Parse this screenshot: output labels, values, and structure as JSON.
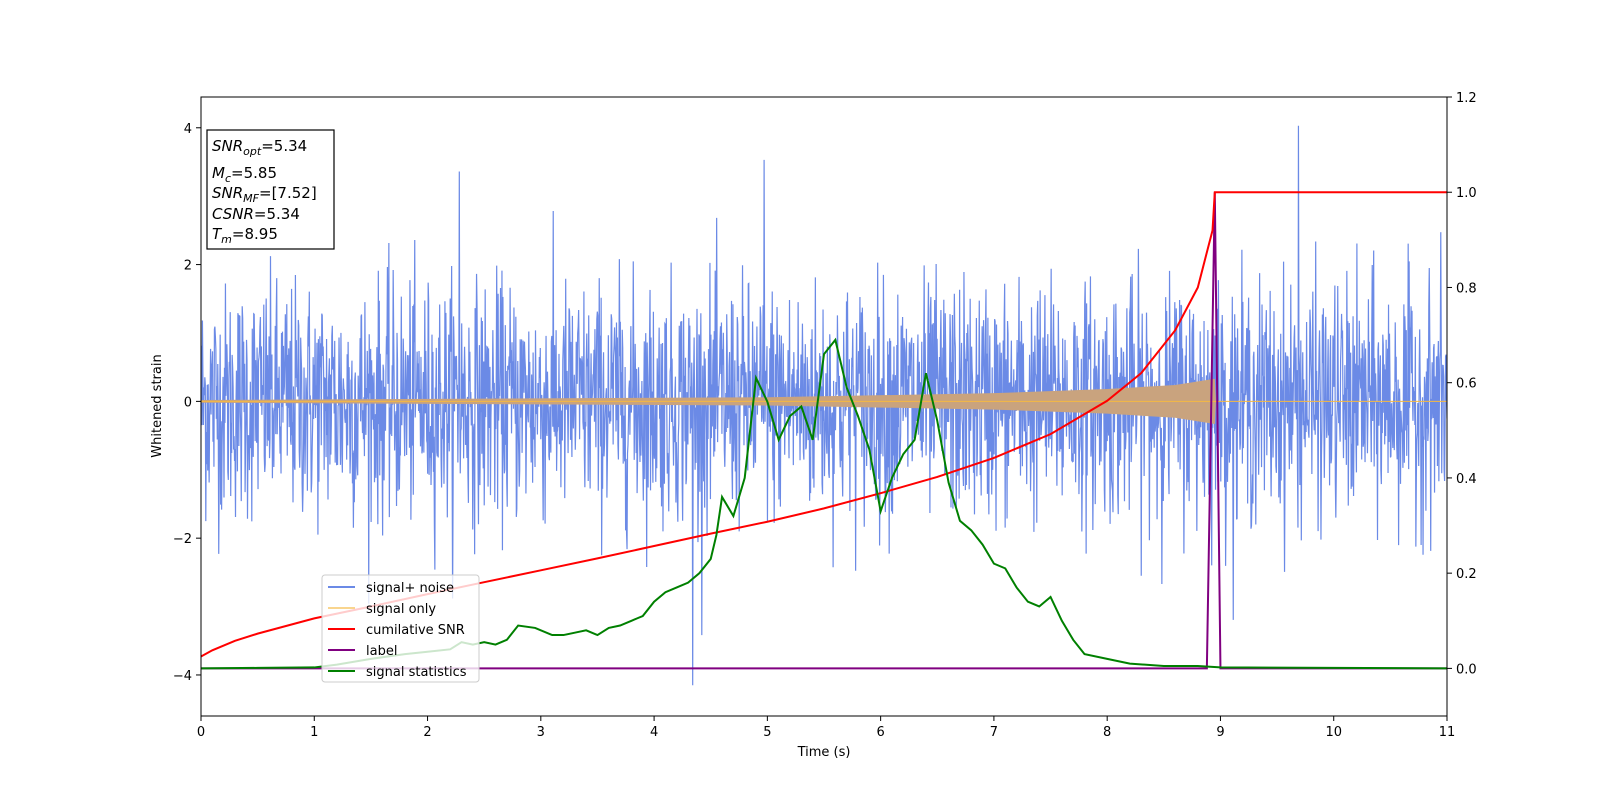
{
  "chart_data": {
    "type": "line",
    "xlabel": "Time (s)",
    "ylabel": "Whitened strain",
    "xlim": [
      0,
      11
    ],
    "ylim": [
      -4.6,
      4.45
    ],
    "ylim_right": [
      -0.1,
      1.2
    ],
    "xticks": [
      "0",
      "1",
      "2",
      "3",
      "4",
      "5",
      "6",
      "7",
      "8",
      "9",
      "10",
      "11"
    ],
    "yticks_left": [
      "−4",
      "−2",
      "0",
      "2",
      "4"
    ],
    "yticks_right": [
      "0.0",
      "0.2",
      "0.4",
      "0.6",
      "0.8",
      "1.0",
      "1.2"
    ],
    "grid": false,
    "legend_position": "lower-left",
    "colors": {
      "noise": "#6b8ae6",
      "signal": "#f5b942",
      "overlap": "#c9a37e",
      "csnr": "#ff0000",
      "label": "#800080",
      "stats": "#008000"
    },
    "annotation": {
      "snr_opt": {
        "base": "SNR",
        "sub": "opt",
        "value": "=5.34"
      },
      "mc": {
        "base": "M",
        "sub": "c",
        "value": "=5.85"
      },
      "snr_mf": {
        "base": "SNR",
        "sub": "MF",
        "value": "=[7.52]"
      },
      "csnr": {
        "base": "CSNR",
        "value": "=5.34"
      },
      "tm": {
        "base": "T",
        "sub": "m",
        "value": "=8.95"
      }
    },
    "series": [
      {
        "name": "signal+ noise",
        "axis": "left",
        "noise_std": 0.85,
        "notable_peaks": [
          [
            9.69,
            4.03
          ],
          [
            4.34,
            -4.15
          ],
          [
            4.97,
            3.53
          ],
          [
            2.28,
            3.36
          ]
        ]
      },
      {
        "name": "signal only",
        "axis": "left",
        "amplitude_envelope": [
          [
            0,
            0.02
          ],
          [
            5,
            0.06
          ],
          [
            7,
            0.12
          ],
          [
            8,
            0.18
          ],
          [
            8.6,
            0.24
          ],
          [
            8.95,
            0.33
          ],
          [
            8.96,
            0.0
          ],
          [
            11,
            0.0
          ]
        ]
      },
      {
        "name": "cumilative SNR",
        "axis": "right",
        "x": [
          0,
          0.1,
          0.3,
          0.5,
          1,
          1.5,
          2,
          2.5,
          3,
          3.5,
          4,
          4.5,
          5,
          5.5,
          6,
          6.5,
          7,
          7.5,
          8,
          8.3,
          8.6,
          8.8,
          8.93,
          8.95,
          11
        ],
        "y": [
          0.025,
          0.038,
          0.058,
          0.073,
          0.105,
          0.13,
          0.156,
          0.181,
          0.206,
          0.231,
          0.257,
          0.283,
          0.308,
          0.336,
          0.368,
          0.402,
          0.442,
          0.492,
          0.562,
          0.62,
          0.71,
          0.8,
          0.92,
          1.0,
          1.0
        ]
      },
      {
        "name": "label",
        "axis": "right",
        "x": [
          0,
          8.88,
          8.95,
          9.0,
          11
        ],
        "y": [
          0,
          0,
          1.0,
          0,
          0
        ]
      },
      {
        "name": "signal statistics",
        "axis": "right",
        "x": [
          0,
          0.5,
          1,
          1.2,
          1.5,
          1.8,
          2.0,
          2.2,
          2.3,
          2.4,
          2.5,
          2.6,
          2.7,
          2.8,
          2.95,
          3.1,
          3.2,
          3.3,
          3.4,
          3.5,
          3.6,
          3.7,
          3.8,
          3.85,
          3.9,
          4.0,
          4.1,
          4.2,
          4.3,
          4.4,
          4.5,
          4.55,
          4.6,
          4.7,
          4.8,
          4.9,
          5.0,
          5.1,
          5.2,
          5.3,
          5.4,
          5.5,
          5.6,
          5.7,
          5.8,
          5.9,
          6.0,
          6.1,
          6.2,
          6.3,
          6.4,
          6.5,
          6.6,
          6.7,
          6.8,
          6.9,
          7.0,
          7.1,
          7.2,
          7.3,
          7.4,
          7.5,
          7.6,
          7.7,
          7.8,
          8.0,
          8.2,
          8.5,
          8.8,
          9.0,
          11
        ],
        "y": [
          0.0,
          0.001,
          0.002,
          0.008,
          0.02,
          0.03,
          0.035,
          0.04,
          0.055,
          0.05,
          0.055,
          0.05,
          0.06,
          0.09,
          0.085,
          0.07,
          0.07,
          0.075,
          0.08,
          0.07,
          0.085,
          0.09,
          0.1,
          0.105,
          0.11,
          0.14,
          0.16,
          0.17,
          0.18,
          0.2,
          0.23,
          0.28,
          0.36,
          0.32,
          0.4,
          0.61,
          0.56,
          0.48,
          0.53,
          0.55,
          0.48,
          0.66,
          0.69,
          0.59,
          0.53,
          0.46,
          0.33,
          0.4,
          0.45,
          0.48,
          0.62,
          0.52,
          0.39,
          0.31,
          0.29,
          0.26,
          0.22,
          0.21,
          0.17,
          0.14,
          0.13,
          0.15,
          0.1,
          0.06,
          0.03,
          0.02,
          0.01,
          0.005,
          0.005,
          0.002,
          0.0
        ]
      }
    ]
  }
}
